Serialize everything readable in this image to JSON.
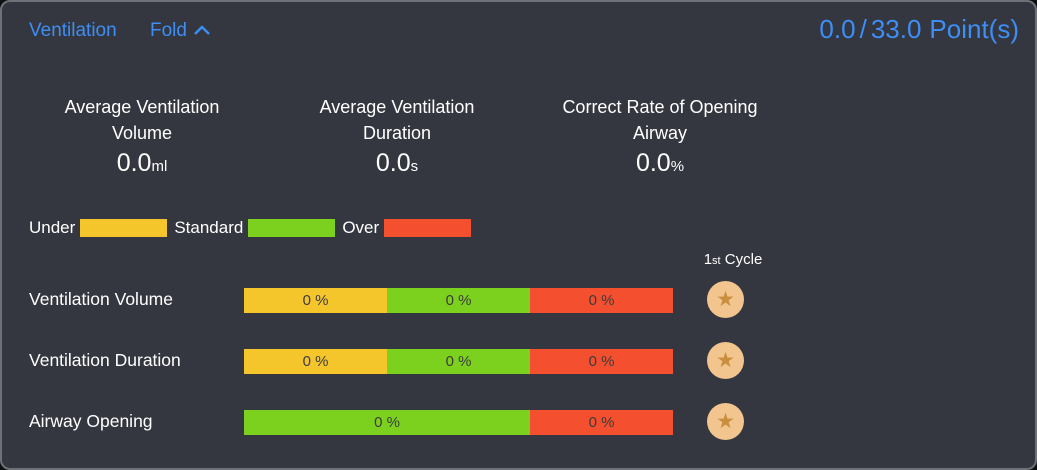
{
  "panel": {
    "title": "Ventilation",
    "fold_label": "Fold",
    "score": "0.0",
    "score_total": "33.0",
    "score_unit": "Point(s)"
  },
  "stats": [
    {
      "label_line1": "Average Ventilation",
      "label_line2": "Volume",
      "value": "0.0",
      "unit": "ml"
    },
    {
      "label_line1": "Average Ventilation",
      "label_line2": "Duration",
      "value": "0.0",
      "unit": "s"
    },
    {
      "label_line1": "Correct Rate of Opening",
      "label_line2": "Airway",
      "value": "0.0",
      "unit": "%"
    }
  ],
  "legend": [
    {
      "label": "Under",
      "zone": "under"
    },
    {
      "label": "Standard",
      "zone": "standard"
    },
    {
      "label": "Over",
      "zone": "over"
    }
  ],
  "cycle_header": {
    "number": "1",
    "suffix": "st",
    "word": "Cycle"
  },
  "rows": [
    {
      "label": "Ventilation Volume",
      "segments": [
        {
          "zone": "under",
          "label": "0 %",
          "span": 1
        },
        {
          "zone": "standard",
          "label": "0 %",
          "span": 1
        },
        {
          "zone": "over",
          "label": "0 %",
          "span": 1
        }
      ],
      "badge_icon": "star"
    },
    {
      "label": "Ventilation Duration",
      "segments": [
        {
          "zone": "under",
          "label": "0 %",
          "span": 1
        },
        {
          "zone": "standard",
          "label": "0 %",
          "span": 1
        },
        {
          "zone": "over",
          "label": "0 %",
          "span": 1
        }
      ],
      "badge_icon": "star"
    },
    {
      "label": "Airway Opening",
      "segments": [
        {
          "zone": "standard",
          "label": "0 %",
          "span": 2
        },
        {
          "zone": "over",
          "label": "0 %",
          "span": 1
        }
      ],
      "badge_icon": "star"
    }
  ],
  "colors": {
    "under": "#f5c62c",
    "standard": "#7cd11f",
    "over": "#f4502f",
    "accent_blue": "#3d8ef5",
    "badge_bg": "#f2c48e",
    "badge_star": "#c98e3e"
  }
}
